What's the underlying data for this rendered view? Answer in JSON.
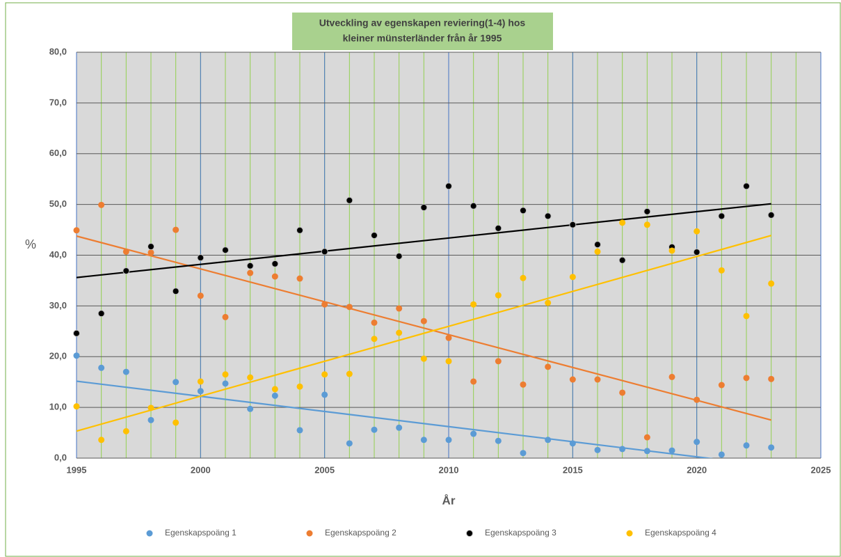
{
  "chart_data": {
    "type": "scatter",
    "title": [
      "Utveckling av egenskapen reviering(1-4) hos",
      "kleiner münsterländer från år 1995"
    ],
    "xlabel": "År",
    "ylabel": "%",
    "x": [
      1995,
      1996,
      1997,
      1998,
      1999,
      2000,
      2001,
      2002,
      2003,
      2004,
      2005,
      2006,
      2007,
      2008,
      2009,
      2010,
      2011,
      2012,
      2013,
      2014,
      2015,
      2016,
      2017,
      2018,
      2019,
      2020,
      2021,
      2022,
      2023
    ],
    "series": [
      {
        "name": "Egenskapspoäng 1",
        "color": "#5b9bd5",
        "values": [
          20.2,
          17.8,
          17.0,
          7.5,
          15.0,
          13.2,
          14.7,
          9.7,
          12.3,
          5.5,
          12.5,
          2.9,
          5.6,
          6.0,
          3.6,
          3.6,
          4.8,
          3.4,
          1.0,
          3.6,
          2.9,
          1.6,
          1.8,
          1.4,
          1.5,
          3.2,
          0.7,
          2.5,
          2.1
        ]
      },
      {
        "name": "Egenskapspoäng 2",
        "color": "#ed7d31",
        "values": [
          44.9,
          49.9,
          40.7,
          40.5,
          45.0,
          32.0,
          27.8,
          36.5,
          35.8,
          35.4,
          30.3,
          29.8,
          26.7,
          29.5,
          27.0,
          23.7,
          15.1,
          19.1,
          14.5,
          18.0,
          15.5,
          15.5,
          12.9,
          4.1,
          16.0,
          11.5,
          14.4,
          15.8,
          15.6
        ]
      },
      {
        "name": "Egenskapspoäng 3",
        "color": "#000000",
        "values": [
          24.6,
          28.5,
          36.9,
          41.7,
          32.9,
          39.5,
          41.0,
          37.9,
          38.3,
          44.9,
          40.7,
          50.8,
          43.9,
          39.8,
          49.4,
          53.6,
          49.7,
          45.3,
          48.8,
          47.7,
          46.0,
          42.1,
          39.0,
          48.6,
          41.6,
          40.6,
          47.7,
          53.6,
          47.9
        ]
      },
      {
        "name": "Egenskapspoäng 4",
        "color": "#ffc000",
        "values": [
          10.2,
          3.6,
          5.3,
          9.9,
          7.0,
          15.1,
          16.5,
          15.9,
          13.6,
          14.1,
          16.5,
          16.6,
          23.5,
          24.7,
          19.6,
          19.1,
          30.3,
          32.1,
          35.5,
          30.6,
          35.7,
          40.7,
          46.4,
          46.0,
          40.9,
          44.7,
          37.0,
          28.0,
          34.4
        ]
      }
    ],
    "trendline": true,
    "xlim": [
      1995,
      2025
    ],
    "xticks": [
      1995,
      2000,
      2005,
      2010,
      2015,
      2020,
      2025
    ],
    "ylim": [
      0,
      80
    ],
    "yticks": [
      {
        "value": 0,
        "label": "0,0"
      },
      {
        "value": 10,
        "label": "10,0"
      },
      {
        "value": 20,
        "label": "20,0"
      },
      {
        "value": 30,
        "label": "30,0"
      },
      {
        "value": 40,
        "label": "40,0"
      },
      {
        "value": 50,
        "label": "50,0"
      },
      {
        "value": 60,
        "label": "60,0"
      },
      {
        "value": 70,
        "label": "70,0"
      },
      {
        "value": 80,
        "label": "80,0"
      }
    ],
    "grid": true,
    "legend": "bottom"
  }
}
